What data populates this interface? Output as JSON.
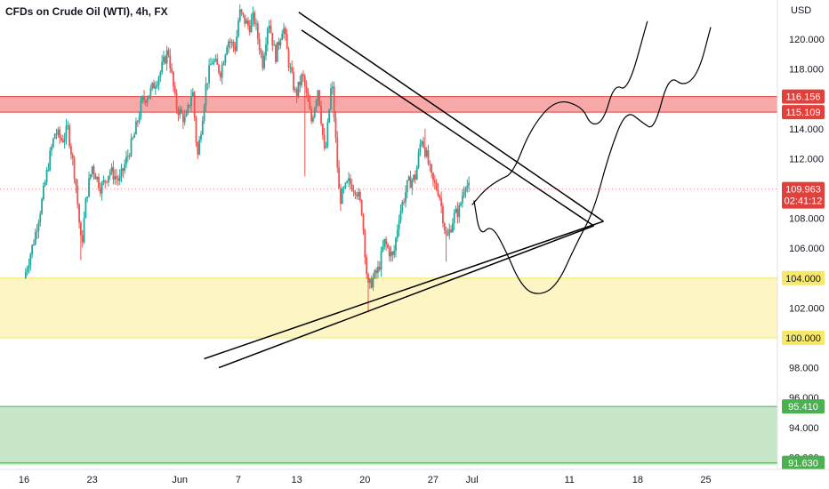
{
  "chart_data": {
    "type": "candlestick",
    "title": "CFDs on Crude Oil (WTI), 4h, FX",
    "currency": "USD",
    "ylim": [
      91.5,
      122.0
    ],
    "y_ticks": [
      "120.000",
      "118.000",
      "114.000",
      "112.000",
      "108.000",
      "106.000",
      "102.000",
      "98.000",
      "96.000",
      "94.000",
      "92.000"
    ],
    "x_ticks": [
      {
        "label": "16",
        "day": 0
      },
      {
        "label": "23",
        "day": 7
      },
      {
        "label": "Jun",
        "day": 16
      },
      {
        "label": "7",
        "day": 22
      },
      {
        "label": "13",
        "day": 28
      },
      {
        "label": "20",
        "day": 35
      },
      {
        "label": "27",
        "day": 42
      },
      {
        "label": "Jul",
        "day": 46
      },
      {
        "label": "11",
        "day": 56
      },
      {
        "label": "18",
        "day": 63
      },
      {
        "label": "25",
        "day": 70
      }
    ],
    "price_path": [
      [
        0,
        104.0
      ],
      [
        1.0,
        106.5
      ],
      [
        1.8,
        109.0
      ],
      [
        2.6,
        112.0
      ],
      [
        3.2,
        113.8
      ],
      [
        3.9,
        113.2
      ],
      [
        4.5,
        114.0
      ],
      [
        5.3,
        110.5
      ],
      [
        5.9,
        106.0
      ],
      [
        6.4,
        109.5
      ],
      [
        7.0,
        111.5
      ],
      [
        7.9,
        110.0
      ],
      [
        8.8,
        111.2
      ],
      [
        9.8,
        110.5
      ],
      [
        10.7,
        112.3
      ],
      [
        11.3,
        113.5
      ],
      [
        12.1,
        115.8
      ],
      [
        13.0,
        116.5
      ],
      [
        14.0,
        117.8
      ],
      [
        14.8,
        119.3
      ],
      [
        15.6,
        115.5
      ],
      [
        16.6,
        114.5
      ],
      [
        17.3,
        116.7
      ],
      [
        17.8,
        112.0
      ],
      [
        18.7,
        117.0
      ],
      [
        19.3,
        118.6
      ],
      [
        20.2,
        117.8
      ],
      [
        20.9,
        120.0
      ],
      [
        21.7,
        119.4
      ],
      [
        22.1,
        121.8
      ],
      [
        23.1,
        120.8
      ],
      [
        23.6,
        121.5
      ],
      [
        24.5,
        118.4
      ],
      [
        25.1,
        121.4
      ],
      [
        25.8,
        118.8
      ],
      [
        26.6,
        121.0
      ],
      [
        27.2,
        118.3
      ],
      [
        27.9,
        116.2
      ],
      [
        28.6,
        117.6
      ],
      [
        29.5,
        114.5
      ],
      [
        30.2,
        116.8
      ],
      [
        30.9,
        112.0
      ],
      [
        31.6,
        117.3
      ],
      [
        32.4,
        109.2
      ],
      [
        33.3,
        110.4
      ],
      [
        34.1,
        110.0
      ],
      [
        34.7,
        108.5
      ],
      [
        35.3,
        103.3
      ],
      [
        35.8,
        103.9
      ],
      [
        36.4,
        104.6
      ],
      [
        37.0,
        106.4
      ],
      [
        37.9,
        105.3
      ],
      [
        38.5,
        108.2
      ],
      [
        39.4,
        110.3
      ],
      [
        40.2,
        110.8
      ],
      [
        40.8,
        113.5
      ],
      [
        41.4,
        112.0
      ],
      [
        41.9,
        110.5
      ],
      [
        42.6,
        109.8
      ],
      [
        43.4,
        106.5
      ],
      [
        44.1,
        108.1
      ],
      [
        44.7,
        108.6
      ],
      [
        45.3,
        110.5
      ],
      [
        45.7,
        109.963
      ]
    ],
    "wick_dips": [
      [
        5.9,
        105.2
      ],
      [
        28.9,
        110.8
      ],
      [
        35.3,
        101.7
      ],
      [
        43.4,
        105.1
      ]
    ],
    "wick_spikes": [
      [
        22.1,
        122.0
      ],
      [
        41.2,
        114.0
      ]
    ],
    "levels": [
      {
        "label": "116.156",
        "value": 116.156,
        "color": "#e0413c"
      },
      {
        "label": "115.109",
        "value": 115.109,
        "color": "#e0413c"
      },
      {
        "label": "104.000",
        "value": 104.0,
        "color": "#f5e86a",
        "text_color": "#131722"
      },
      {
        "label": "100.000",
        "value": 100.0,
        "color": "#f5e86a",
        "text_color": "#131722"
      },
      {
        "label": "95.410",
        "value": 95.41,
        "color": "#4caf50"
      },
      {
        "label": "91.630",
        "value": 91.63,
        "color": "#4caf50"
      }
    ],
    "zones": [
      {
        "name": "resistance",
        "from": 115.109,
        "to": 116.156,
        "color": "#f7a9a9"
      },
      {
        "name": "support",
        "from": 100.0,
        "to": 104.0,
        "color": "#fdf6c4"
      },
      {
        "name": "demand",
        "from": 91.5,
        "to": 95.41,
        "color": "#c8e6c9"
      }
    ],
    "current_price": {
      "label": "109.963",
      "countdown": "02:41:12",
      "value": 109.963,
      "color": "#e0413c"
    },
    "trendlines": [
      [
        [
          28.2,
          121.8
        ],
        [
          59.5,
          107.8
        ]
      ],
      [
        [
          28.5,
          120.6
        ],
        [
          58.5,
          107.5
        ]
      ],
      [
        [
          18.5,
          98.6
        ],
        [
          59.5,
          107.8
        ]
      ],
      [
        [
          20.0,
          98.0
        ],
        [
          58.5,
          107.5
        ]
      ]
    ],
    "bullish_projection": [
      [
        46.0,
        108.9
      ],
      [
        47.3,
        109.9
      ],
      [
        48.8,
        110.6
      ],
      [
        50.2,
        111.0
      ],
      [
        52.0,
        114.0
      ],
      [
        54.6,
        116.0
      ],
      [
        57.3,
        115.5
      ],
      [
        58.2,
        114.2
      ],
      [
        59.5,
        114.5
      ],
      [
        60.6,
        117.0
      ],
      [
        62.0,
        116.5
      ],
      [
        64.0,
        121.2
      ]
    ],
    "bearish_projection": [
      [
        46.2,
        109.2
      ],
      [
        46.8,
        106.8
      ],
      [
        48.0,
        107.6
      ],
      [
        49.5,
        105.8
      ],
      [
        50.8,
        103.8
      ],
      [
        52.3,
        102.8
      ],
      [
        54.6,
        103.3
      ],
      [
        56.7,
        106.3
      ],
      [
        58.5,
        108.5
      ],
      [
        60.0,
        112.2
      ],
      [
        61.8,
        115.3
      ],
      [
        63.5,
        114.4
      ],
      [
        64.7,
        113.9
      ],
      [
        66.2,
        117.6
      ],
      [
        67.8,
        116.8
      ],
      [
        69.3,
        117.8
      ],
      [
        70.5,
        120.8
      ]
    ]
  }
}
